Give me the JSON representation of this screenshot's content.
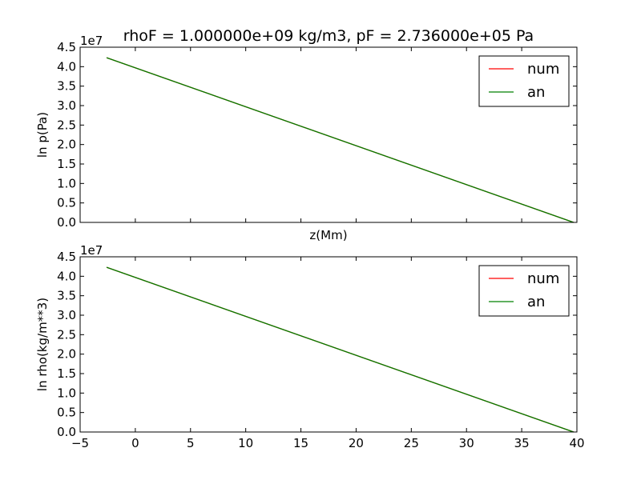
{
  "chart_data": [
    {
      "type": "line",
      "title": "rhoF = 1.000000e+09 kg/m3, pF = 2.736000e+05 Pa",
      "xlabel": "z(Mm)",
      "ylabel": "ln p(Pa)",
      "y_offset_label": "1e7",
      "xlim": [
        -5,
        40
      ],
      "ylim": [
        0,
        4.5
      ],
      "xticks": [
        -5,
        0,
        5,
        10,
        15,
        20,
        25,
        30,
        35,
        40
      ],
      "xtick_labels_visible": false,
      "yticks": [
        "0.0",
        "0.5",
        "1.0",
        "1.5",
        "2.0",
        "2.5",
        "3.0",
        "3.5",
        "4.0",
        "4.5"
      ],
      "legend_placement": "upper-right",
      "series": [
        {
          "name": "num",
          "color": "#ff0000",
          "x": [
            -2.6,
            39.7
          ],
          "y": [
            4.23,
            0.0
          ]
        },
        {
          "name": "an",
          "color": "#008000",
          "x": [
            -2.6,
            39.7
          ],
          "y": [
            4.23,
            0.0
          ]
        }
      ]
    },
    {
      "type": "line",
      "title": "",
      "xlabel": "",
      "ylabel": "ln rho(kg/m**3)",
      "y_offset_label": "1e7",
      "xlim": [
        -5,
        40
      ],
      "ylim": [
        0,
        4.5
      ],
      "xticks": [
        "−5",
        "0",
        "5",
        "10",
        "15",
        "20",
        "25",
        "30",
        "35",
        "40"
      ],
      "xtick_labels_visible": true,
      "yticks": [
        "0.0",
        "0.5",
        "1.0",
        "1.5",
        "2.0",
        "2.5",
        "3.0",
        "3.5",
        "4.0",
        "4.5"
      ],
      "legend_placement": "upper-right",
      "series": [
        {
          "name": "num",
          "color": "#ff0000",
          "x": [
            -2.6,
            39.7
          ],
          "y": [
            4.23,
            0.0
          ]
        },
        {
          "name": "an",
          "color": "#008000",
          "x": [
            -2.6,
            39.7
          ],
          "y": [
            4.23,
            0.0
          ]
        }
      ]
    }
  ]
}
